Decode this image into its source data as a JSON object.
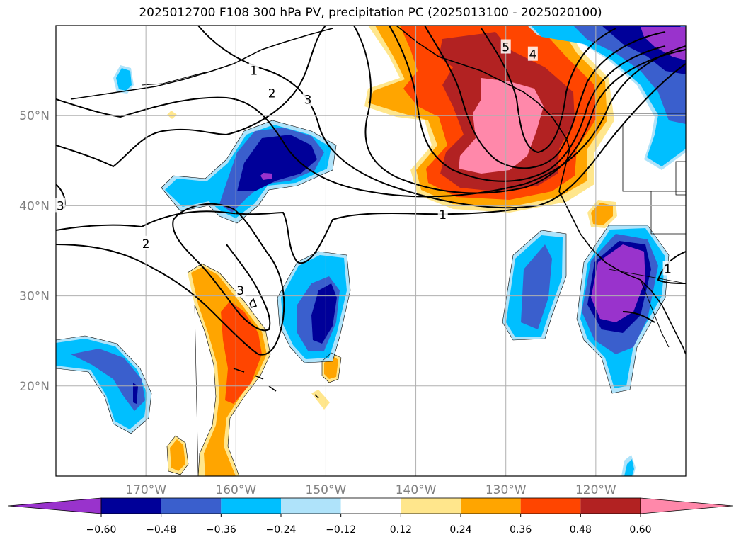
{
  "title": "2025012700 F108 300 hPa PV, precipitation PC (2025013100 - 2025020100)",
  "map": {
    "lon_range": [
      -180,
      -110
    ],
    "lat_range": [
      10,
      60
    ],
    "lon_ticks": [
      {
        "lon": -170,
        "label": "170°W"
      },
      {
        "lon": -160,
        "label": "160°W"
      },
      {
        "lon": -150,
        "label": "150°W"
      },
      {
        "lon": -140,
        "label": "140°W"
      },
      {
        "lon": -130,
        "label": "130°W"
      },
      {
        "lon": -120,
        "label": "120°W"
      }
    ],
    "lat_ticks": [
      {
        "lat": 20,
        "label": "20°N"
      },
      {
        "lat": 30,
        "label": "30°N"
      },
      {
        "lat": 40,
        "label": "40°N"
      },
      {
        "lat": 50,
        "label": "50°N"
      }
    ],
    "gridlines": true
  },
  "colorbar": {
    "ticks": [
      "−0.60",
      "−0.48",
      "−0.36",
      "−0.24",
      "−0.12",
      "0.12",
      "0.24",
      "0.36",
      "0.48",
      "0.60"
    ],
    "colors": [
      "#9933cc",
      "#000099",
      "#3a5fcd",
      "#00bfff",
      "#afe3fa",
      "#ffffff",
      "#ffe68c",
      "#ffa500",
      "#ff4500",
      "#b22222",
      "#ff88aa"
    ]
  },
  "contour_labels": [
    {
      "text": "1",
      "lon": -158,
      "lat": 55
    },
    {
      "text": "2",
      "lon": -156,
      "lat": 52.5
    },
    {
      "text": "3",
      "lon": -152,
      "lat": 51.8
    },
    {
      "text": "5",
      "lon": -130,
      "lat": 57.6
    },
    {
      "text": "4",
      "lon": -127,
      "lat": 56.8
    },
    {
      "text": "1",
      "lon": -137,
      "lat": 39
    },
    {
      "text": "3",
      "lon": -179.5,
      "lat": 40
    },
    {
      "text": "2",
      "lon": -170,
      "lat": 35.8
    },
    {
      "text": "3",
      "lon": -159.5,
      "lat": 30.6
    },
    {
      "text": "1",
      "lon": -112,
      "lat": 33
    }
  ]
}
